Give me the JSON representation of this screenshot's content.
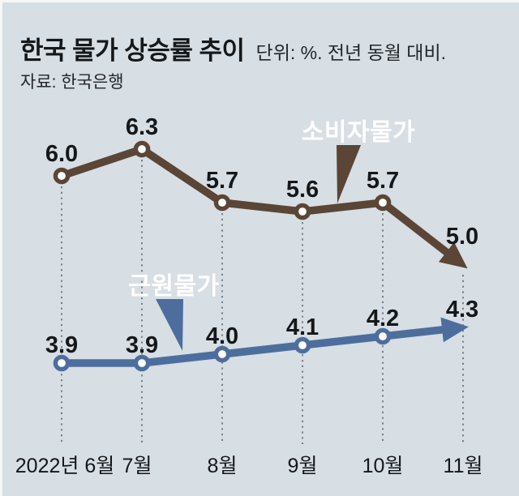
{
  "header": {
    "title": "한국 물가 상승률 추이",
    "unit_note": "단위: %. 전년 동월 대비.",
    "source": "자료: 한국은행"
  },
  "chart_data": {
    "type": "line",
    "title": "한국 물가 상승률 추이",
    "unit": "%",
    "comparison_basis": "전년 동월 대비",
    "source": "한국은행",
    "categories": [
      "2022년 6월",
      "7월",
      "8월",
      "9월",
      "10월",
      "11월"
    ],
    "series": [
      {
        "name": "소비자물가",
        "values": [
          6.0,
          6.3,
          5.7,
          5.6,
          5.7,
          5.0
        ],
        "labels": [
          "6.0",
          "6.3",
          "5.7",
          "5.6",
          "5.7",
          "5.0"
        ],
        "color": "#5a4536",
        "end_style": "arrow"
      },
      {
        "name": "근원물가",
        "values": [
          3.9,
          3.9,
          4.0,
          4.1,
          4.2,
          4.3
        ],
        "labels": [
          "3.9",
          "3.9",
          "4.0",
          "4.1",
          "4.2",
          "4.3"
        ],
        "color": "#4d6e9d",
        "end_style": "arrow"
      }
    ],
    "yaxis": "none (values labeled directly on points)",
    "ylim": [
      3.5,
      6.8
    ],
    "grid": "dotted vertical guides per month",
    "legend_position": "inline callout boxes with pointer tails",
    "background": "#d7dee4",
    "marker": "white dot with colored ring (last point replaced by arrowhead)"
  }
}
